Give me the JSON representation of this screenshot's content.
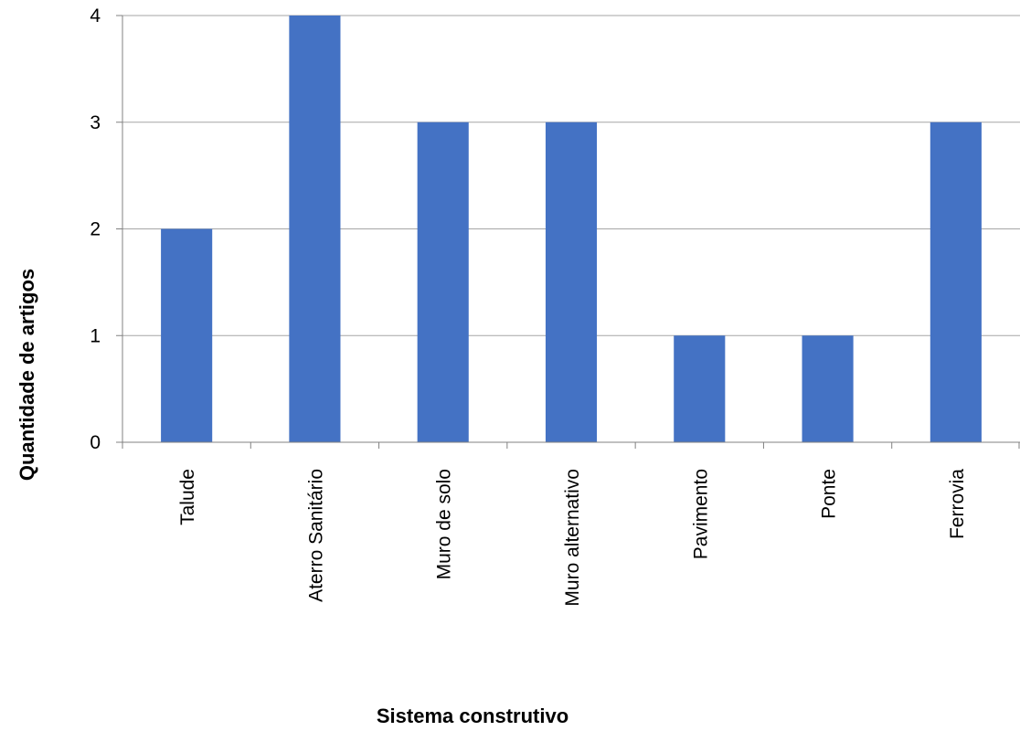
{
  "chart_data": {
    "type": "bar",
    "categories": [
      "Talude",
      "Aterro Sanitário",
      "Muro de solo",
      "Muro alternativo",
      "Pavimento",
      "Ponte",
      "Ferrovia"
    ],
    "values": [
      2,
      4,
      3,
      3,
      1,
      1,
      3
    ],
    "title": "",
    "xlabel": "Sistema construtivo",
    "ylabel": "Quantidade de artigos",
    "ylim": [
      0,
      4
    ],
    "yticks": [
      "0",
      "1",
      "2",
      "3",
      "4"
    ],
    "grid": true,
    "legend": "none",
    "bar_color": "#4472C4",
    "grid_color": "#A6A6A6"
  }
}
